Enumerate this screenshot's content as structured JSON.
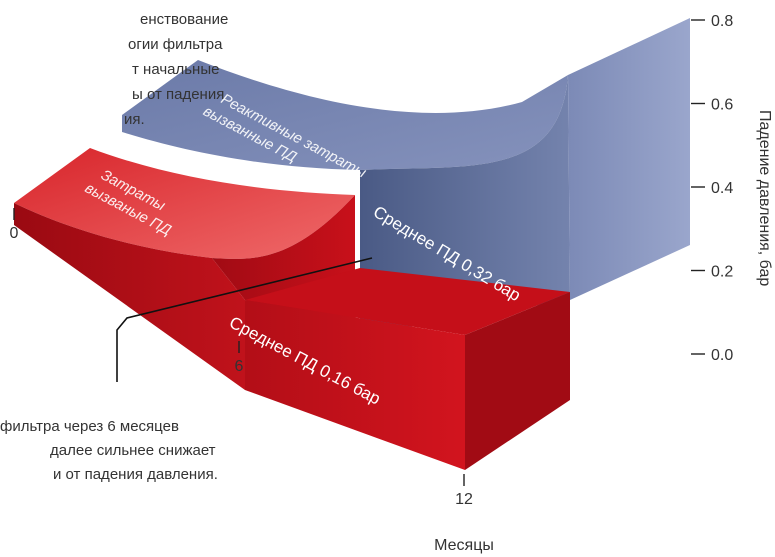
{
  "chart_data": {
    "type": "area",
    "title": "",
    "x_label": "Месяцы",
    "y_label": "Падение давления, бар",
    "x_ticks": [
      0,
      6,
      12
    ],
    "y_ticks": [
      "0.0",
      "0.2",
      "0.4",
      "0.6",
      "0.8"
    ],
    "ylim": [
      0,
      0.8
    ],
    "xlim": [
      0,
      12
    ],
    "series": [
      {
        "name": "Среднее ПД 0,16 бар",
        "average": 0.16,
        "color": "#c8101a"
      },
      {
        "name": "Среднее ПД 0,32 бар",
        "average": 0.32,
        "color": "#5c6f9e"
      }
    ],
    "area_labels": {
      "red": "Затраты вызванные ПД",
      "blue": "Реактивные затраты вызванные ПД"
    },
    "red_label_lines": [
      "Затраты",
      "вызваные ПД"
    ],
    "blue_label_lines": [
      "Реактивные затраты",
      "вызванные ПД"
    ],
    "annotations": {
      "top_lines": [
        "енствование",
        "огии фильтра",
        "т начальные",
        "ы от падения",
        "ия."
      ],
      "bottom_lines": [
        "фильтра через 6 месяцев",
        "далее сильнее снижает",
        "и от падения давления."
      ]
    }
  }
}
